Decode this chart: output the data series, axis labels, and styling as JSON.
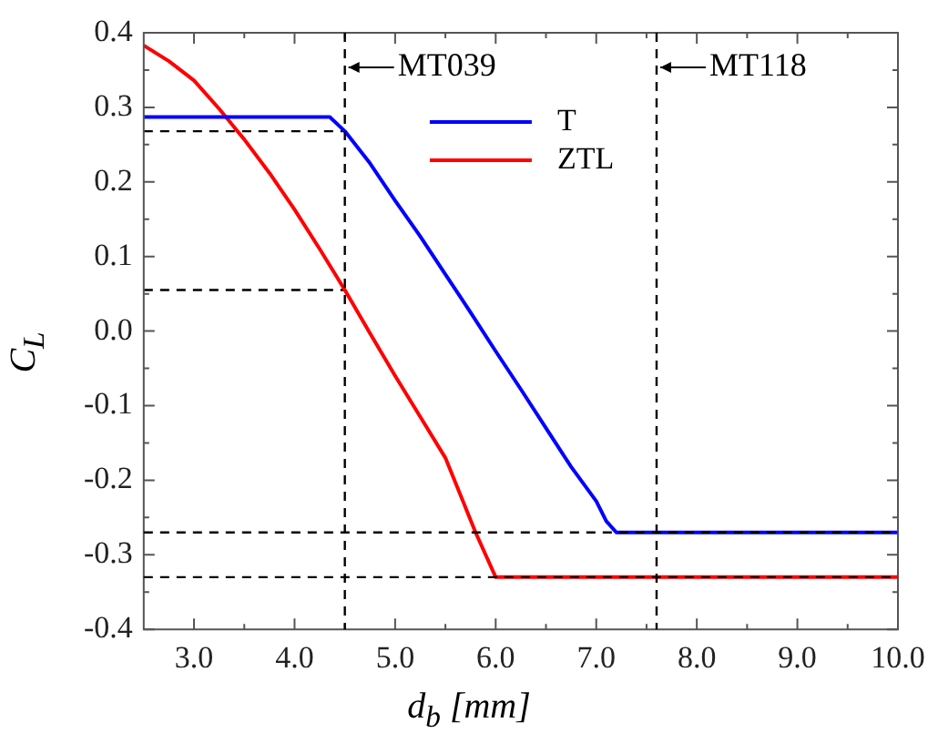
{
  "chart_data": {
    "type": "line",
    "xlabel": "d$_{b}$ [mm]",
    "ylabel": "C$_{L}$",
    "xlim": [
      2.5,
      10.0
    ],
    "xticks": [
      {
        "value": 3.0,
        "label": "3.0"
      },
      {
        "value": 4.0,
        "label": "4.0"
      },
      {
        "value": 5.0,
        "label": "5.0"
      },
      {
        "value": 6.0,
        "label": "6.0"
      },
      {
        "value": 7.0,
        "label": "7.0"
      },
      {
        "value": 8.0,
        "label": "8.0"
      },
      {
        "value": 9.0,
        "label": "9.0"
      },
      {
        "value": 10.0,
        "label": "10.0"
      }
    ],
    "ylim": [
      -0.4,
      0.4
    ],
    "yticks": [
      {
        "value": -0.4,
        "label": "-0.4"
      },
      {
        "value": -0.3,
        "label": "-0.3"
      },
      {
        "value": -0.2,
        "label": "-0.2"
      },
      {
        "value": -0.1,
        "label": "-0.1"
      },
      {
        "value": 0,
        "label": "0.0"
      },
      {
        "value": 0.1,
        "label": "0.1"
      },
      {
        "value": 0.2,
        "label": "0.2"
      },
      {
        "value": 0.3,
        "label": "0.3"
      },
      {
        "value": 0.4,
        "label": "0.4"
      }
    ],
    "grid": false,
    "legend": "top",
    "marker": "none",
    "series": [
      {
        "name": "T",
        "color": "#0000ff",
        "x": [
          2.5,
          4.35,
          4.5,
          4.75,
          5.0,
          5.25,
          5.5,
          5.75,
          6.0,
          6.25,
          6.5,
          6.75,
          7.0,
          7.1,
          7.2,
          10.0
        ],
        "values": [
          0.287,
          0.287,
          0.268,
          0.225,
          0.175,
          0.127,
          0.076,
          0.025,
          -0.027,
          -0.078,
          -0.13,
          -0.182,
          -0.228,
          -0.255,
          -0.27,
          -0.27
        ]
      },
      {
        "name": "ZTL",
        "color": "#ff0000",
        "x": [
          2.5,
          2.75,
          3.0,
          3.25,
          3.5,
          3.75,
          4.0,
          4.25,
          4.5,
          4.75,
          5.0,
          5.25,
          5.5,
          5.8,
          6.0,
          10.0
        ],
        "values": [
          0.383,
          0.362,
          0.336,
          0.298,
          0.257,
          0.212,
          0.163,
          0.11,
          0.055,
          -0.003,
          -0.06,
          -0.115,
          -0.17,
          -0.27,
          -0.33,
          -0.33
        ]
      },
      {
        "color": "#000000",
        "line_style": "dashed",
        "x": [
          2.5,
          4.5
        ],
        "values": [
          0.268,
          0.268
        ]
      },
      {
        "color": "#000000",
        "line_style": "dashed",
        "x": [
          2.5,
          4.5
        ],
        "values": [
          0.055,
          0.055
        ]
      }
    ],
    "ref_lines": [
      {
        "axis": "x",
        "value": 4.5,
        "label": "MT039",
        "color": "#000000",
        "line_style": "dashed"
      },
      {
        "axis": "x",
        "value": 7.6,
        "label": "MT118",
        "color": "#000000",
        "line_style": "dashed"
      },
      {
        "axis": "y",
        "value": -0.27,
        "color": "#000000",
        "line_style": "dashed"
      },
      {
        "axis": "y",
        "value": -0.33,
        "color": "#000000",
        "line_style": "dashed"
      }
    ]
  }
}
